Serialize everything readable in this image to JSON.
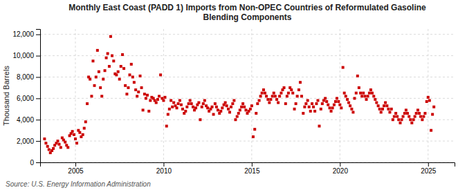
{
  "chart_data": {
    "type": "scatter",
    "title": "Monthly East Coast (PADD 1) Imports from Non-OPEC Countries of Reformulated Gasoline\nBlending Components",
    "ylabel": "Thousand Barrels",
    "source": "Source: U.S. Energy Information Administration",
    "color": "#cc0000",
    "marker": "square",
    "grid": true,
    "xlim": [
      2003.0,
      2026.5
    ],
    "xticks": [
      2005,
      2010,
      2015,
      2020,
      2025
    ],
    "ylim": [
      0,
      12500
    ],
    "yticks": [
      0,
      {
        "value": 2000,
        "label": "2,000"
      },
      {
        "value": 4000,
        "label": "4,000"
      },
      {
        "value": 6000,
        "label": "6,000"
      },
      {
        "value": 8000,
        "label": "8,000"
      },
      {
        "value": 10000,
        "label": "10,000"
      },
      {
        "value": 12000,
        "label": "12,000"
      }
    ],
    "x": [
      2003.25,
      2003.33,
      2003.42,
      2003.5,
      2003.58,
      2003.67,
      2003.75,
      2003.83,
      2003.92,
      2004.0,
      2004.08,
      2004.17,
      2004.25,
      2004.33,
      2004.42,
      2004.5,
      2004.58,
      2004.67,
      2004.75,
      2004.83,
      2004.92,
      2005.0,
      2005.08,
      2005.17,
      2005.25,
      2005.33,
      2005.42,
      2005.5,
      2005.58,
      2005.67,
      2005.75,
      2005.83,
      2005.92,
      2006.0,
      2006.08,
      2006.17,
      2006.25,
      2006.33,
      2006.42,
      2006.5,
      2006.58,
      2006.67,
      2006.75,
      2006.83,
      2006.92,
      2007.0,
      2007.08,
      2007.17,
      2007.25,
      2007.33,
      2007.42,
      2007.5,
      2007.58,
      2007.67,
      2007.75,
      2007.83,
      2007.92,
      2008.0,
      2008.08,
      2008.17,
      2008.25,
      2008.33,
      2008.42,
      2008.5,
      2008.58,
      2008.67,
      2008.75,
      2008.83,
      2008.92,
      2009.0,
      2009.08,
      2009.17,
      2009.25,
      2009.33,
      2009.42,
      2009.5,
      2009.58,
      2009.67,
      2009.75,
      2009.83,
      2009.92,
      2010.0,
      2010.08,
      2010.17,
      2010.25,
      2010.33,
      2010.42,
      2010.5,
      2010.58,
      2010.67,
      2010.75,
      2010.83,
      2010.92,
      2011.0,
      2011.08,
      2011.17,
      2011.25,
      2011.33,
      2011.42,
      2011.5,
      2011.58,
      2011.67,
      2011.75,
      2011.83,
      2011.92,
      2012.0,
      2012.08,
      2012.17,
      2012.25,
      2012.33,
      2012.42,
      2012.5,
      2012.58,
      2012.67,
      2012.75,
      2012.83,
      2012.92,
      2013.0,
      2013.08,
      2013.17,
      2013.25,
      2013.33,
      2013.42,
      2013.5,
      2013.58,
      2013.67,
      2013.75,
      2013.83,
      2013.92,
      2014.0,
      2014.08,
      2014.17,
      2014.25,
      2014.33,
      2014.42,
      2014.5,
      2014.58,
      2014.67,
      2014.75,
      2014.83,
      2014.92,
      2015.0,
      2015.08,
      2015.17,
      2015.25,
      2015.33,
      2015.42,
      2015.5,
      2015.58,
      2015.67,
      2015.75,
      2015.83,
      2015.92,
      2016.0,
      2016.08,
      2016.17,
      2016.25,
      2016.33,
      2016.42,
      2016.5,
      2016.58,
      2016.67,
      2016.75,
      2016.83,
      2016.92,
      2017.0,
      2017.08,
      2017.17,
      2017.25,
      2017.33,
      2017.42,
      2017.5,
      2017.58,
      2017.67,
      2017.75,
      2017.83,
      2017.92,
      2018.0,
      2018.08,
      2018.17,
      2018.25,
      2018.33,
      2018.42,
      2018.5,
      2018.58,
      2018.67,
      2018.75,
      2018.83,
      2018.92,
      2019.0,
      2019.08,
      2019.17,
      2019.25,
      2019.33,
      2019.42,
      2019.5,
      2019.58,
      2019.67,
      2019.75,
      2019.83,
      2019.92,
      2020.0,
      2020.08,
      2020.17,
      2020.25,
      2020.33,
      2020.42,
      2020.5,
      2020.58,
      2020.67,
      2020.75,
      2020.83,
      2020.92,
      2021.0,
      2021.08,
      2021.17,
      2021.25,
      2021.33,
      2021.42,
      2021.5,
      2021.58,
      2021.67,
      2021.75,
      2021.83,
      2021.92,
      2022.0,
      2022.08,
      2022.17,
      2022.25,
      2022.33,
      2022.42,
      2022.5,
      2022.58,
      2022.67,
      2022.75,
      2022.83,
      2022.92,
      2023.0,
      2023.08,
      2023.17,
      2023.25,
      2023.33,
      2023.42,
      2023.5,
      2023.58,
      2023.67,
      2023.75,
      2023.83,
      2023.92,
      2024.0,
      2024.08,
      2024.17,
      2024.25,
      2024.33,
      2024.42,
      2024.5,
      2024.58,
      2024.67,
      2024.75,
      2024.83,
      2024.92,
      2025.0,
      2025.08,
      2025.17,
      2025.25,
      2025.33
    ],
    "values": [
      2200,
      1800,
      1500,
      1200,
      900,
      1100,
      1300,
      1600,
      1800,
      2000,
      1700,
      1400,
      2300,
      2100,
      1900,
      1600,
      1400,
      2500,
      2700,
      2900,
      2600,
      2200,
      1800,
      3000,
      2800,
      2400,
      2600,
      3200,
      3800,
      5500,
      8000,
      7800,
      6200,
      9500,
      7200,
      8000,
      10500,
      8500,
      7000,
      6200,
      7800,
      8600,
      9800,
      10200,
      9000,
      11800,
      10000,
      9500,
      8300,
      8200,
      8500,
      7800,
      9000,
      10100,
      8800,
      7200,
      6400,
      7000,
      8200,
      9200,
      8000,
      7500,
      6800,
      6200,
      6600,
      8100,
      7000,
      4900,
      6400,
      6000,
      6300,
      4800,
      5800,
      6100,
      6000,
      5800,
      5600,
      5900,
      6200,
      8200,
      6000,
      5800,
      6100,
      3400,
      4500,
      5000,
      5800,
      5200,
      5600,
      5300,
      5100,
      5500,
      5800,
      5400,
      5000,
      4600,
      4800,
      5200,
      5500,
      5800,
      5500,
      5200,
      4900,
      5100,
      5400,
      5600,
      4000,
      5200,
      5500,
      5800,
      5300,
      5100,
      4800,
      5000,
      5200,
      4500,
      5500,
      5200,
      4900,
      4600,
      4800,
      5100,
      5400,
      5600,
      5300,
      5000,
      4700,
      5200,
      5500,
      5800,
      4000,
      4300,
      4600,
      4900,
      5200,
      5500,
      5200,
      4900,
      4600,
      4800,
      5000,
      5300,
      2400,
      3100,
      4600,
      5500,
      5800,
      6200,
      6500,
      6800,
      6500,
      6200,
      5900,
      5600,
      5900,
      6200,
      6500,
      6200,
      5900,
      5600,
      6200,
      6500,
      6800,
      7000,
      5500,
      6200,
      6500,
      7000,
      6800,
      6500,
      5000,
      5500,
      6200,
      6800,
      7500,
      6200,
      4600,
      5200,
      5500,
      5800,
      5200,
      4800,
      5500,
      5200,
      4800,
      5500,
      5800,
      3400,
      5000,
      5500,
      5800,
      6000,
      5700,
      5400,
      5100,
      4800,
      5100,
      5400,
      5700,
      6000,
      5700,
      5400,
      5100,
      8900,
      6500,
      6200,
      5900,
      5600,
      5300,
      5000,
      4700,
      6000,
      6500,
      8100,
      7000,
      6500,
      6200,
      6500,
      6200,
      5900,
      6200,
      6500,
      6800,
      6500,
      6200,
      5900,
      5600,
      5300,
      5000,
      4700,
      5000,
      5300,
      5600,
      5300,
      5000,
      4700,
      5000,
      4000,
      4300,
      4600,
      4300,
      4000,
      3700,
      4000,
      4300,
      4600,
      4900,
      4600,
      4300,
      4000,
      3700,
      4000,
      4300,
      4600,
      4900,
      4600,
      4300,
      4000,
      4300,
      4600,
      5700,
      6100,
      5800,
      3000,
      4500,
      5200
    ]
  }
}
